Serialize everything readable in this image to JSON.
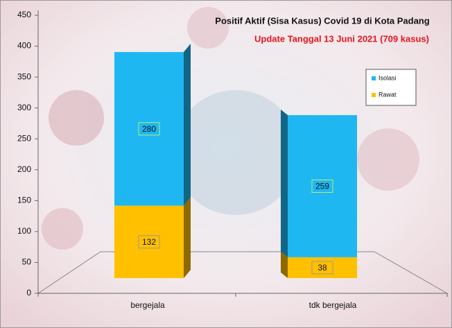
{
  "chart_data": {
    "type": "bar3d_stacked",
    "title": "Positif Aktif  (Sisa Kasus) Covid 19 di Kota Padang",
    "subtitle": "Update Tanggal 13 Juni 2021  (709 kasus)",
    "categories": [
      "bergejala",
      "tdk bergejala"
    ],
    "series": [
      {
        "name": "Rawat",
        "color": "#ffc000",
        "values": [
          132,
          38
        ]
      },
      {
        "name": "Isolasi",
        "color": "#1fb7f2",
        "values": [
          280,
          259
        ]
      }
    ],
    "ylim": [
      0,
      450
    ],
    "yticks": [
      0,
      50,
      100,
      150,
      200,
      250,
      300,
      350,
      400,
      450
    ],
    "legend": "right"
  }
}
